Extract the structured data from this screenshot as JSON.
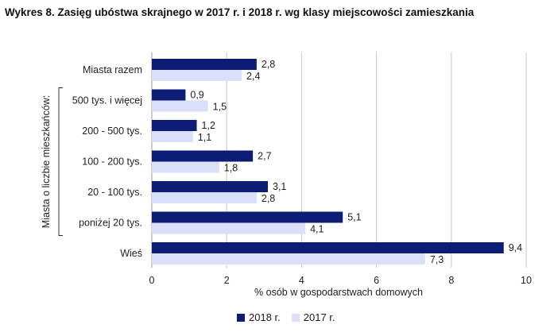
{
  "title": "Wykres 8. Zasięg ubóstwa skrajnego w 2017 r. i 2018 r. wg klasy miejscowości zamieszkania",
  "chart_data": {
    "type": "bar",
    "orientation": "horizontal",
    "categories": [
      "Miasta razem",
      "500 tys. i więcej",
      "200 - 500 tys.",
      "100 - 200 tys.",
      "20 - 100 tys.",
      "poniżej 20 tys.",
      "Wieś"
    ],
    "group_label": "Miasta o liczbie mieszkańców:",
    "series": [
      {
        "name": "2018 r.",
        "values": [
          2.8,
          0.9,
          1.2,
          2.7,
          3.1,
          5.1,
          9.4
        ],
        "labels": [
          "2,8",
          "0,9",
          "1,2",
          "2,7",
          "3,1",
          "5,1",
          "9,4"
        ],
        "color": "#0d1d75"
      },
      {
        "name": "2017 r.",
        "values": [
          2.4,
          1.5,
          1.1,
          1.8,
          2.8,
          4.1,
          7.3
        ],
        "labels": [
          "2,4",
          "1,5",
          "1,1",
          "1,8",
          "2,8",
          "4,1",
          "7,3"
        ],
        "color": "#dae0fa"
      }
    ],
    "xlabel": "% osób w gospodarstwach domowych",
    "xlim": [
      0,
      10
    ],
    "xticks": [
      0,
      2,
      4,
      6,
      8,
      10
    ],
    "grid": true,
    "legend_position": "bottom"
  }
}
